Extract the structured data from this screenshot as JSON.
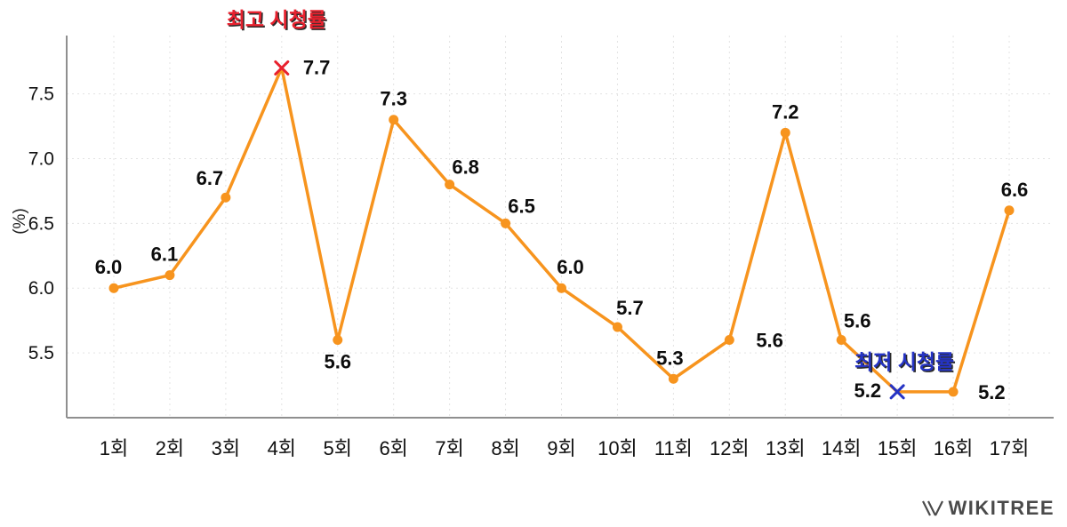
{
  "chart_data": {
    "type": "line",
    "title": "",
    "categories": [
      "1회",
      "2회",
      "3회",
      "4회",
      "5회",
      "6회",
      "7회",
      "8회",
      "9회",
      "10회",
      "11회",
      "12회",
      "13회",
      "14회",
      "15회",
      "16회",
      "17회"
    ],
    "values": [
      6.0,
      6.1,
      6.7,
      7.7,
      5.6,
      7.3,
      6.8,
      6.5,
      6.0,
      5.7,
      5.3,
      5.6,
      7.2,
      5.6,
      5.2,
      5.2,
      6.6
    ],
    "xlabel": "",
    "ylabel": "(%)",
    "yticks": [
      5.5,
      6.0,
      6.5,
      7.0,
      7.5
    ],
    "ylim": [
      5.0,
      7.95
    ],
    "grid": "dotted",
    "legend_position": "none",
    "series_color": "#F7941E",
    "max_annotation": {
      "label": "최고 시청률",
      "index": 3,
      "value": 7.7,
      "color": "#E8212E",
      "marker": "x"
    },
    "min_annotation": {
      "label": "최저 시청률",
      "index": 14,
      "value": 5.2,
      "color": "#2533C4",
      "marker": "x"
    }
  },
  "footer": {
    "brand": "WIKITREE"
  }
}
